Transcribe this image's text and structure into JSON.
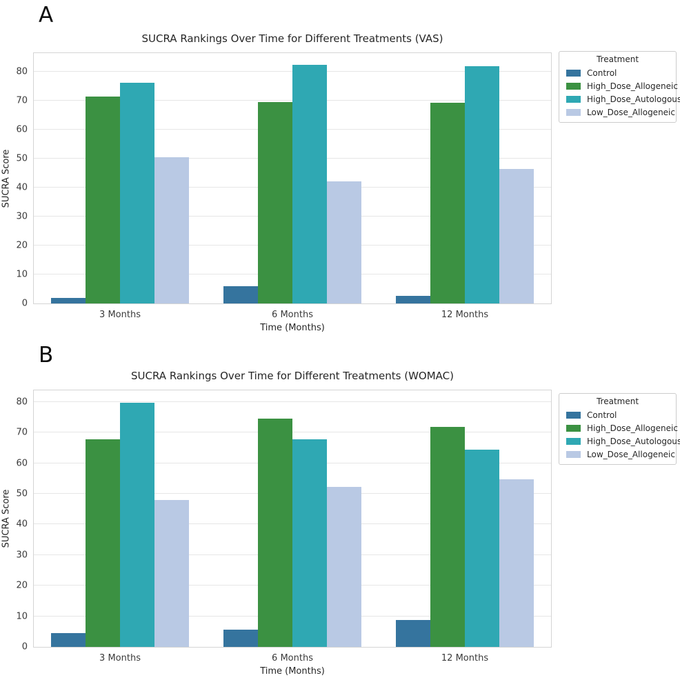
{
  "panels": [
    {
      "label": "A"
    },
    {
      "label": "B"
    }
  ],
  "chart_data": [
    {
      "type": "bar",
      "title": "SUCRA Rankings Over Time for Different Treatments (VAS)",
      "xlabel": "Time (Months)",
      "ylabel": "SUCRA Score",
      "legend_title": "Treatment",
      "legend_position": "outside upper right",
      "grid": true,
      "categories": [
        "3 Months",
        "6 Months",
        "12 Months"
      ],
      "yticks": [
        0,
        10,
        20,
        30,
        40,
        50,
        60,
        70,
        80
      ],
      "ylim": [
        0,
        86.3
      ],
      "series": [
        {
          "name": "Control",
          "color": "#35749e",
          "values": [
            2.0,
            6.0,
            2.5
          ]
        },
        {
          "name": "High_Dose_Allogeneic",
          "color": "#3b9142",
          "values": [
            71.4,
            69.4,
            69.3
          ]
        },
        {
          "name": "High_Dose_Autologous",
          "color": "#2fa8b3",
          "values": [
            76.0,
            82.2,
            81.7
          ]
        },
        {
          "name": "Low_Dose_Allogeneic",
          "color": "#b9c9e4",
          "values": [
            50.3,
            42.0,
            46.3
          ]
        }
      ]
    },
    {
      "type": "bar",
      "title": "SUCRA Rankings Over Time for Different Treatments (WOMAC)",
      "xlabel": "Time (Months)",
      "ylabel": "SUCRA Score",
      "legend_title": "Treatment",
      "legend_position": "outside upper right",
      "grid": true,
      "categories": [
        "3 Months",
        "6 Months",
        "12 Months"
      ],
      "yticks": [
        0,
        10,
        20,
        30,
        40,
        50,
        60,
        70,
        80
      ],
      "ylim": [
        0,
        83.8
      ],
      "series": [
        {
          "name": "Control",
          "color": "#35749e",
          "values": [
            4.4,
            5.6,
            8.9
          ]
        },
        {
          "name": "High_Dose_Allogeneic",
          "color": "#3b9142",
          "values": [
            67.8,
            74.6,
            71.8
          ]
        },
        {
          "name": "High_Dose_Autologous",
          "color": "#2fa8b3",
          "values": [
            79.8,
            67.7,
            64.5
          ]
        },
        {
          "name": "Low_Dose_Allogeneic",
          "color": "#b9c9e4",
          "values": [
            48.0,
            52.2,
            54.8
          ]
        }
      ]
    }
  ]
}
